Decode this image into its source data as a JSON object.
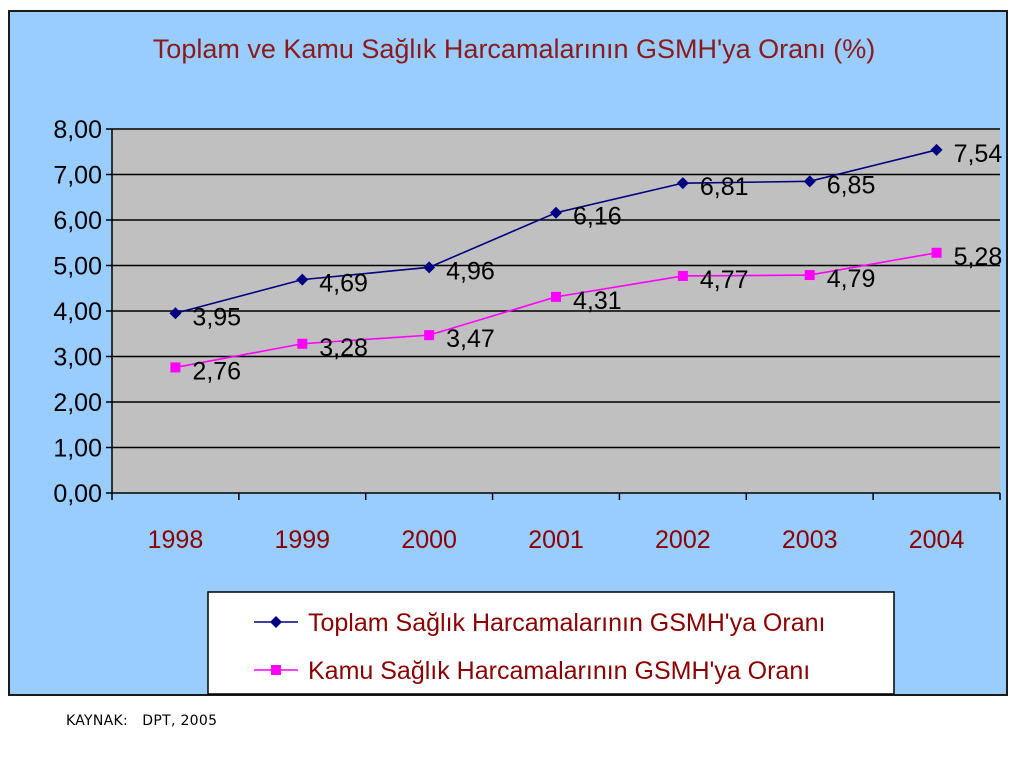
{
  "chart_data": {
    "type": "line",
    "title": "Toplam ve Kamu Sağlık Harcamalarının GSMH'ya Oranı (%)",
    "categories": [
      "1998",
      "1999",
      "2000",
      "2001",
      "2002",
      "2003",
      "2004"
    ],
    "yticks": [
      "0,00",
      "1,00",
      "2,00",
      "3,00",
      "4,00",
      "5,00",
      "6,00",
      "7,00",
      "8,00"
    ],
    "ylim": [
      0,
      8
    ],
    "grid": true,
    "legend_position": "bottom",
    "series": [
      {
        "name": "Toplam Sağlık Harcamalarının GSMH'ya Oranı",
        "values": [
          3.95,
          4.69,
          4.96,
          6.16,
          6.81,
          6.85,
          7.54
        ],
        "labels": [
          "3,95",
          "4,69",
          "4,96",
          "6,16",
          "6,81",
          "6,85",
          "7,54"
        ],
        "color": "#000080",
        "marker": "diamond"
      },
      {
        "name": "Kamu Sağlık Harcamalarının GSMH'ya Oranı",
        "values": [
          2.76,
          3.28,
          3.47,
          4.31,
          4.77,
          4.79,
          5.28
        ],
        "labels": [
          "2,76",
          "3,28",
          "3,47",
          "4,31",
          "4,77",
          "4,79",
          "5,28"
        ],
        "color": "#ff00ff",
        "marker": "square"
      }
    ]
  },
  "colors": {
    "background": "#99ccff",
    "plot_area": "#c0c0c0",
    "gridline": "#000000",
    "title": "#8b1a1a",
    "x_tick_text": "#8b0000",
    "legend_text": "#8b0000"
  },
  "source_note": "KAYNAK:   DPT, 2005"
}
